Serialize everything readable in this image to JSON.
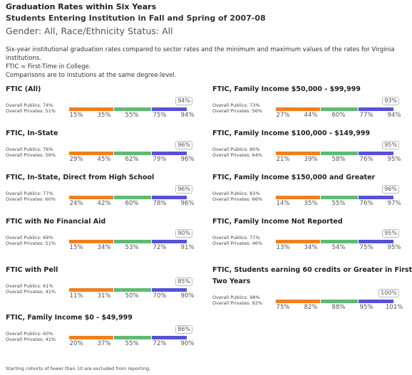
{
  "header": {
    "title": "Graduation Rates within Six Years",
    "subtitle": "Students Entering Institution in Fall and Spring of 2007-08",
    "filters": "Gender: All, Race/Ethnicity Status: All"
  },
  "description": [
    "Six-year institutional graduation rates compared to sector rates and the minimum and maximum values of the rates for Virginia institutions.",
    "FTIC = First-Time in College.",
    "Comparisons are to instutions at the same degree-level."
  ],
  "panels": [
    {
      "title": "FTIC (All)",
      "publics": "Overall Publics: 74%",
      "privates": "Overall Privates: 51%",
      "scale": [
        "15%",
        "35%",
        "55%",
        "75%",
        "94%"
      ],
      "callout": "94%"
    },
    {
      "title": "FTIC, In-State",
      "publics": "Overall Publics: 76%",
      "privates": "Overall Privates: 56%",
      "scale": [
        "29%",
        "45%",
        "62%",
        "79%",
        "96%"
      ],
      "callout": "96%"
    },
    {
      "title": "FTIC, In-State, Direct from High School",
      "publics": "Overall Publics: 77%",
      "privates": "Overall Privates: 60%",
      "scale": [
        "24%",
        "42%",
        "60%",
        "78%",
        "96%"
      ],
      "callout": "96%"
    },
    {
      "title": "FTIC with No Financial Aid",
      "publics": "Overall Publics: 69%",
      "privates": "Overall Privates: 51%",
      "scale": [
        "15%",
        "34%",
        "53%",
        "72%",
        "91%"
      ],
      "callout": "90%"
    },
    {
      "title": "FTIC with Pell",
      "publics": "Overall Publics: 61%",
      "privates": "Overall Privates: 41%",
      "scale": [
        "11%",
        "31%",
        "50%",
        "70%",
        "90%"
      ],
      "callout": "85%"
    },
    {
      "title": "FTIC, Family Income $0 - $49,999",
      "publics": "Overall Publics: 60%",
      "privates": "Overall Privates: 41%",
      "scale": [
        "20%",
        "37%",
        "55%",
        "72%",
        "90%"
      ],
      "callout": "86%"
    },
    {
      "title": "FTIC, Family Income $50,000 - $99,999",
      "publics": "Overall Publics: 73%",
      "privates": "Overall Privates: 56%",
      "scale": [
        "27%",
        "44%",
        "60%",
        "77%",
        "94%"
      ],
      "callout": "93%"
    },
    {
      "title": "FTIC, Family Income $100,000 - $149,999",
      "publics": "Overall Publics: 80%",
      "privates": "Overall Privates: 64%",
      "scale": [
        "21%",
        "39%",
        "58%",
        "76%",
        "95%"
      ],
      "callout": "95%"
    },
    {
      "title": "FTIC, Family Income $150,000 and Greater",
      "publics": "Overall Publics: 83%",
      "privates": "Overall Privates: 66%",
      "scale": [
        "14%",
        "35%",
        "55%",
        "76%",
        "97%"
      ],
      "callout": "96%"
    },
    {
      "title": "FTIC, Family Income Not Reported",
      "publics": "Overall Publics: 77%",
      "privates": "Overall Privates: 46%",
      "scale": [
        "13%",
        "34%",
        "54%",
        "75%",
        "95%"
      ],
      "callout": "95%"
    },
    {
      "title": "FTIC, Students earning 60 credits or Greater in First Two Years",
      "publics": "Overall Publics: 98%",
      "privates": "Overall Privates: 92%",
      "scale": [
        "75%",
        "82%",
        "88%",
        "95%",
        "101%"
      ],
      "callout": "100%"
    }
  ],
  "footer": "Starting cohorts of fewer than 10 are excluded from reporting."
}
